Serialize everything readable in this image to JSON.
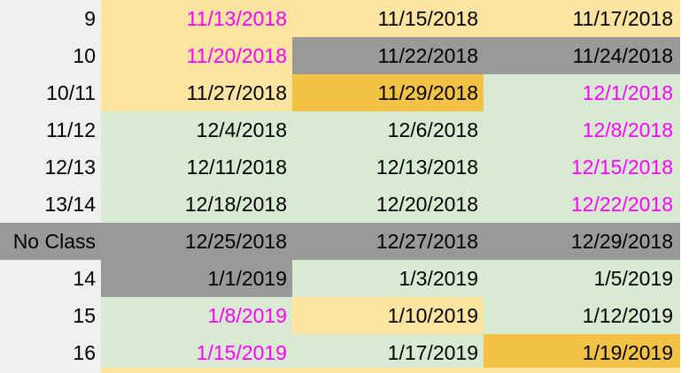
{
  "colors": {
    "header_col": "#efefef",
    "tan": "#fde4a0",
    "gray": "#999999",
    "gold": "#f3c244",
    "green": "#d9ead3",
    "white": "#ffffff",
    "magenta": "#ff00ff",
    "black": "#000000"
  },
  "rows": [
    {
      "label": "9",
      "cells": [
        {
          "date": "11/13/2018",
          "bg": "tan",
          "text": "magenta"
        },
        {
          "date": "11/15/2018",
          "bg": "tan",
          "text": "black"
        },
        {
          "date": "11/17/2018",
          "bg": "tan",
          "text": "black"
        }
      ]
    },
    {
      "label": "10",
      "cells": [
        {
          "date": "11/20/2018",
          "bg": "tan",
          "text": "magenta"
        },
        {
          "date": "11/22/2018",
          "bg": "gray",
          "text": "black"
        },
        {
          "date": "11/24/2018",
          "bg": "gray",
          "text": "black"
        }
      ]
    },
    {
      "label": "10/11",
      "cells": [
        {
          "date": "11/27/2018",
          "bg": "tan",
          "text": "black"
        },
        {
          "date": "11/29/2018",
          "bg": "gold",
          "text": "black"
        },
        {
          "date": "12/1/2018",
          "bg": "green",
          "text": "magenta"
        }
      ]
    },
    {
      "label": "11/12",
      "cells": [
        {
          "date": "12/4/2018",
          "bg": "green",
          "text": "black"
        },
        {
          "date": "12/6/2018",
          "bg": "green",
          "text": "black"
        },
        {
          "date": "12/8/2018",
          "bg": "green",
          "text": "magenta"
        }
      ]
    },
    {
      "label": "12/13",
      "cells": [
        {
          "date": "12/11/2018",
          "bg": "green",
          "text": "black"
        },
        {
          "date": "12/13/2018",
          "bg": "green",
          "text": "black"
        },
        {
          "date": "12/15/2018",
          "bg": "green",
          "text": "magenta"
        }
      ]
    },
    {
      "label": "13/14",
      "cells": [
        {
          "date": "12/18/2018",
          "bg": "green",
          "text": "black"
        },
        {
          "date": "12/20/2018",
          "bg": "green",
          "text": "black"
        },
        {
          "date": "12/22/2018",
          "bg": "green",
          "text": "magenta"
        }
      ]
    },
    {
      "label": "No Class",
      "label_bg": "gray",
      "cells": [
        {
          "date": "12/25/2018",
          "bg": "gray",
          "text": "black"
        },
        {
          "date": "12/27/2018",
          "bg": "gray",
          "text": "black"
        },
        {
          "date": "12/29/2018",
          "bg": "gray",
          "text": "black"
        }
      ]
    },
    {
      "label": "14",
      "cells": [
        {
          "date": "1/1/2019",
          "bg": "gray",
          "text": "black"
        },
        {
          "date": "1/3/2019",
          "bg": "green",
          "text": "black"
        },
        {
          "date": "1/5/2019",
          "bg": "green",
          "text": "black"
        }
      ]
    },
    {
      "label": "15",
      "cells": [
        {
          "date": "1/8/2019",
          "bg": "green",
          "text": "magenta"
        },
        {
          "date": "1/10/2019",
          "bg": "tan",
          "text": "black"
        },
        {
          "date": "1/12/2019",
          "bg": "green",
          "text": "black"
        }
      ]
    },
    {
      "label": "16",
      "cells": [
        {
          "date": "1/15/2019",
          "bg": "green",
          "text": "magenta"
        },
        {
          "date": "1/17/2019",
          "bg": "green",
          "text": "black"
        },
        {
          "date": "1/19/2019",
          "bg": "gold",
          "text": "black"
        }
      ]
    }
  ],
  "next_row": {
    "cells": [
      {
        "bg": "tan"
      },
      {
        "bg": "tan"
      },
      {
        "bg": "tan"
      }
    ]
  }
}
